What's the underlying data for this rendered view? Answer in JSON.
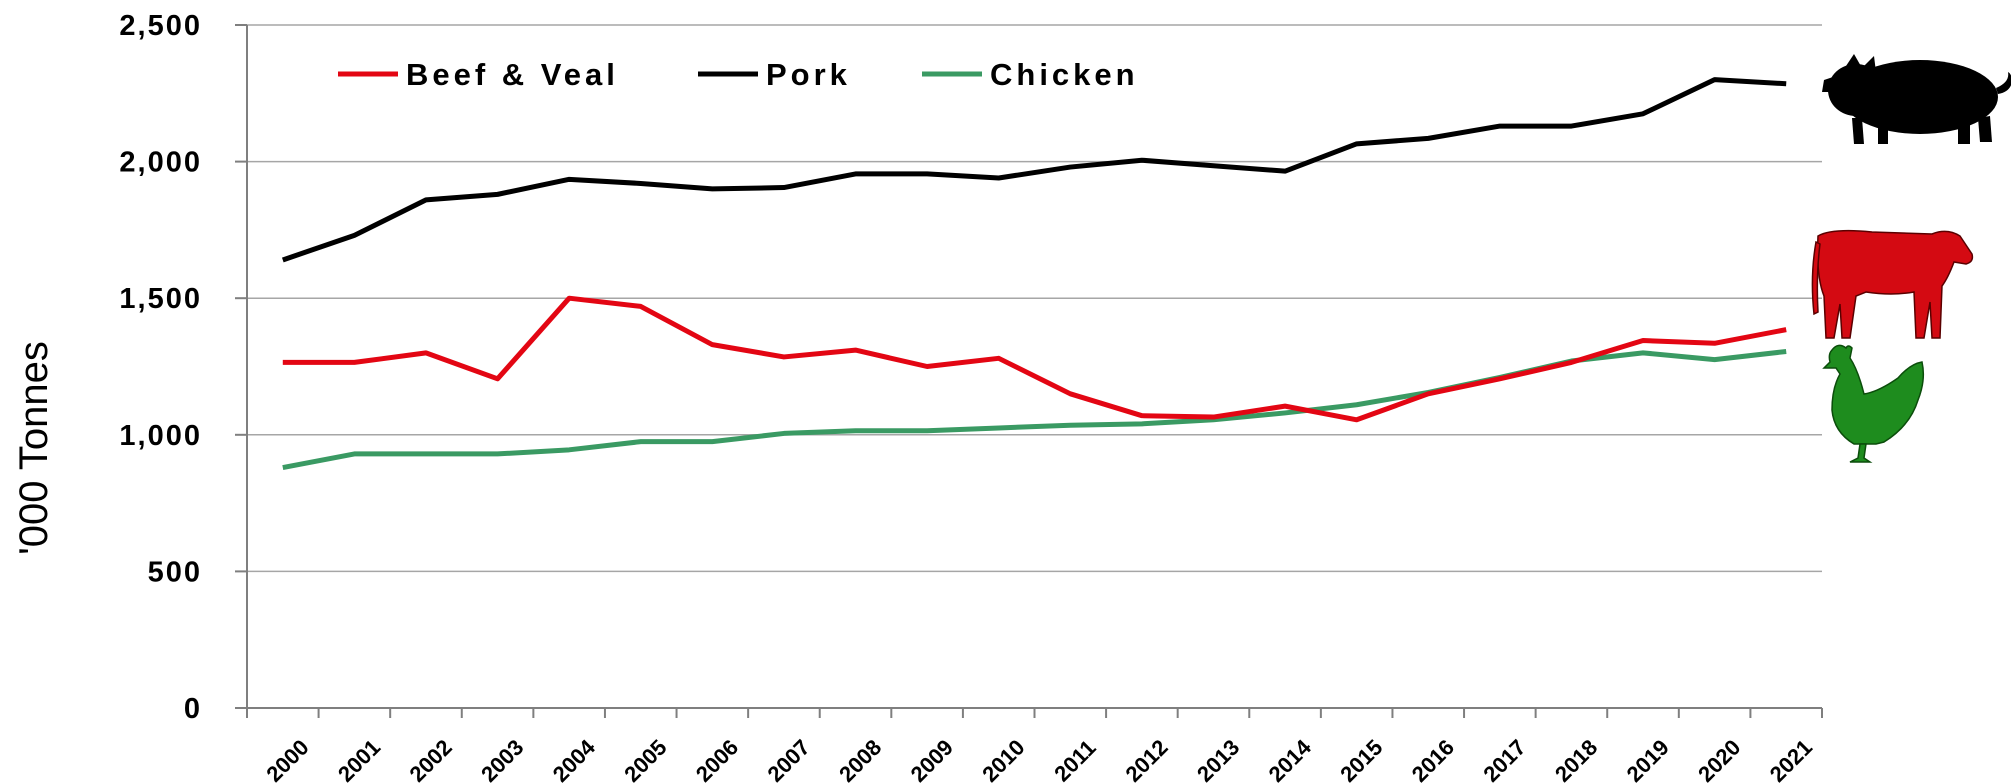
{
  "chart_data": {
    "type": "line",
    "title": "",
    "xlabel": "",
    "ylabel": "'000 Tonnes",
    "ylim": [
      0,
      2500
    ],
    "yticks": [
      "0",
      "500",
      "1,000",
      "1,500",
      "2,000",
      "2,500"
    ],
    "ytick_values": [
      0,
      500,
      1000,
      1500,
      2000,
      2500
    ],
    "grid": true,
    "legend_position": "top-left",
    "categories": [
      "2000",
      "2001",
      "2002",
      "2003",
      "2004",
      "2005",
      "2006",
      "2007",
      "2008",
      "2009",
      "2010",
      "2011",
      "2012",
      "2013",
      "2014",
      "2015",
      "2016",
      "2017",
      "2018",
      "2019",
      "2020",
      "2021"
    ],
    "series": [
      {
        "name": "Beef & Veal",
        "color": "#e30613",
        "values": [
          1265,
          1265,
          1300,
          1205,
          1500,
          1470,
          1330,
          1285,
          1310,
          1250,
          1280,
          1150,
          1070,
          1065,
          1105,
          1055,
          1150,
          1205,
          1265,
          1345,
          1335,
          1385
        ]
      },
      {
        "name": "Pork",
        "color": "#000000",
        "values": [
          1640,
          1730,
          1860,
          1880,
          1935,
          1920,
          1900,
          1905,
          1955,
          1955,
          1940,
          1980,
          2005,
          1985,
          1965,
          2065,
          2085,
          2130,
          2130,
          2175,
          2300,
          2285
        ]
      },
      {
        "name": "Chicken",
        "color": "#3a9a63",
        "values": [
          880,
          930,
          930,
          930,
          945,
          975,
          975,
          1005,
          1015,
          1015,
          1025,
          1035,
          1040,
          1055,
          1080,
          1110,
          1155,
          1210,
          1270,
          1300,
          1275,
          1305
        ]
      }
    ],
    "icons": [
      {
        "name": "pig-icon",
        "color": "#000000"
      },
      {
        "name": "cow-icon",
        "color": "#d40a12"
      },
      {
        "name": "chicken-icon",
        "color": "#1e8c1e"
      }
    ]
  }
}
